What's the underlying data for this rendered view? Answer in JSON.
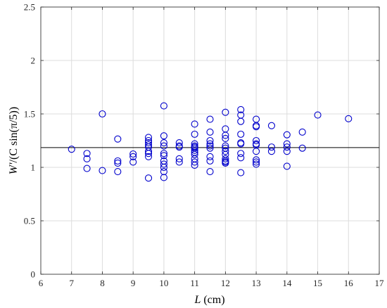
{
  "chart_data": {
    "type": "scatter",
    "title": "",
    "xlabel_var": "L",
    "xlabel_unit": " (cm)",
    "ylabel_var": "W'",
    "ylabel_rest": "/(C sin(π/5))",
    "xlim": [
      6,
      17
    ],
    "ylim": [
      0,
      2.5
    ],
    "xticks": [
      6,
      7,
      8,
      9,
      10,
      11,
      12,
      13,
      14,
      15,
      16,
      17
    ],
    "yticks": [
      0,
      0.5,
      1,
      1.5,
      2,
      2.5
    ],
    "ytick_labels": [
      "0",
      "0.5",
      "1",
      "1.5",
      "2",
      "2.5"
    ],
    "grid": true,
    "reference_line_y": 1.185,
    "marker": "open-circle",
    "colors": {
      "points": "#0000cc",
      "line": "#000000",
      "grid": "#dcdcdc",
      "axis": "#262626"
    },
    "x": [
      7,
      7.5,
      7.5,
      7.5,
      8,
      8,
      8.5,
      8.5,
      8.5,
      8.5,
      9,
      9,
      9,
      9.5,
      9.5,
      9.5,
      9.5,
      9.5,
      9.5,
      9.5,
      9.5,
      9.5,
      10,
      10,
      10,
      10,
      10,
      10,
      10,
      10,
      10,
      10,
      10,
      10.5,
      10.5,
      10.5,
      10.5,
      10.5,
      11,
      11,
      11,
      11,
      11,
      11,
      11,
      11,
      11,
      11,
      11,
      11,
      11.5,
      11.5,
      11.5,
      11.5,
      11.5,
      11.5,
      11.5,
      11.5,
      11.5,
      12,
      12,
      12,
      12,
      12,
      12,
      12,
      12,
      12,
      12,
      12,
      12,
      12.5,
      12.5,
      12.5,
      12.5,
      12.5,
      12.5,
      12.5,
      12.5,
      12.5,
      13,
      13,
      13,
      13,
      13,
      13,
      13,
      13,
      13,
      13,
      13.5,
      13.5,
      13.5,
      14,
      14,
      14,
      14,
      14,
      14.5,
      14.5,
      15,
      16
    ],
    "y": [
      1.17,
      1.13,
      1.08,
      0.99,
      1.5,
      0.97,
      1.265,
      1.06,
      1.04,
      0.96,
      1.125,
      1.1,
      1.05,
      1.28,
      1.25,
      1.23,
      1.21,
      1.19,
      1.15,
      1.13,
      1.1,
      0.9,
      1.575,
      1.295,
      1.23,
      1.2,
      1.13,
      1.11,
      1.06,
      1.03,
      1.0,
      0.96,
      0.905,
      1.23,
      1.2,
      1.19,
      1.08,
      1.05,
      1.405,
      1.31,
      1.22,
      1.2,
      1.19,
      1.18,
      1.16,
      1.14,
      1.12,
      1.08,
      1.05,
      1.02,
      1.45,
      1.33,
      1.25,
      1.22,
      1.2,
      1.18,
      1.1,
      1.06,
      0.96,
      1.515,
      1.36,
      1.3,
      1.27,
      1.2,
      1.18,
      1.15,
      1.12,
      1.08,
      1.06,
      1.05,
      1.04,
      1.54,
      1.49,
      1.43,
      1.31,
      1.23,
      1.22,
      1.13,
      1.09,
      0.95,
      1.45,
      1.39,
      1.38,
      1.25,
      1.22,
      1.21,
      1.15,
      1.07,
      1.05,
      1.03,
      1.39,
      1.19,
      1.15,
      1.305,
      1.22,
      1.19,
      1.15,
      1.01,
      1.33,
      1.18,
      1.49,
      1.455
    ]
  }
}
